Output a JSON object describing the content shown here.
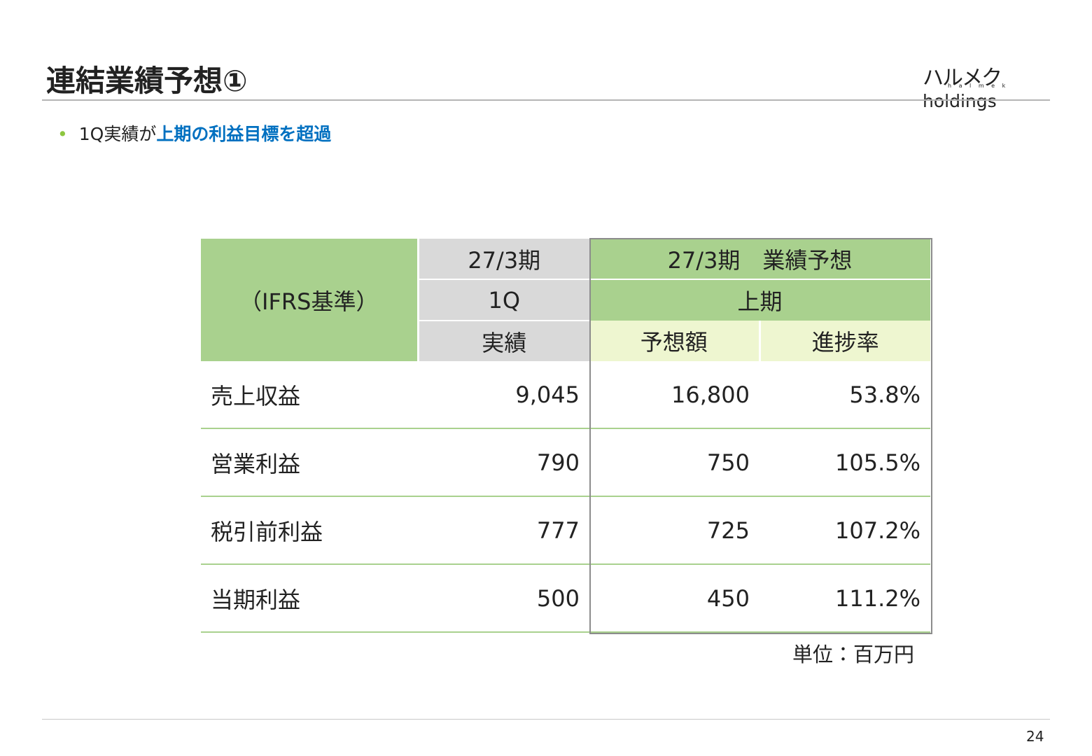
{
  "header": {
    "title": "連結業績予想①",
    "logo": {
      "brand": "ハルメク",
      "suffix": "holdings",
      "sub": "h a l m e k"
    }
  },
  "bullet": {
    "lead": "1Q実績が",
    "highlight": "上期の利益目標を超過"
  },
  "table": {
    "header": {
      "basis": "（IFRS基準）",
      "actual_period": "27/3期",
      "actual_quarter": "1Q",
      "actual_label": "実績",
      "forecast_period": "27/3期　業績予想",
      "forecast_half": "上期",
      "forecast_amount": "予想額",
      "progress": "進捗率"
    },
    "rows": [
      [
        "売上収益",
        "9,045",
        "16,800",
        "53.8%"
      ],
      [
        "営業利益",
        "790",
        "750",
        "105.5%"
      ],
      [
        "税引前利益",
        "777",
        "725",
        "107.2%"
      ],
      [
        "当期利益",
        "500",
        "450",
        "111.2%"
      ]
    ],
    "unit": "単位：百万円"
  },
  "footer": {
    "page": "24"
  }
}
